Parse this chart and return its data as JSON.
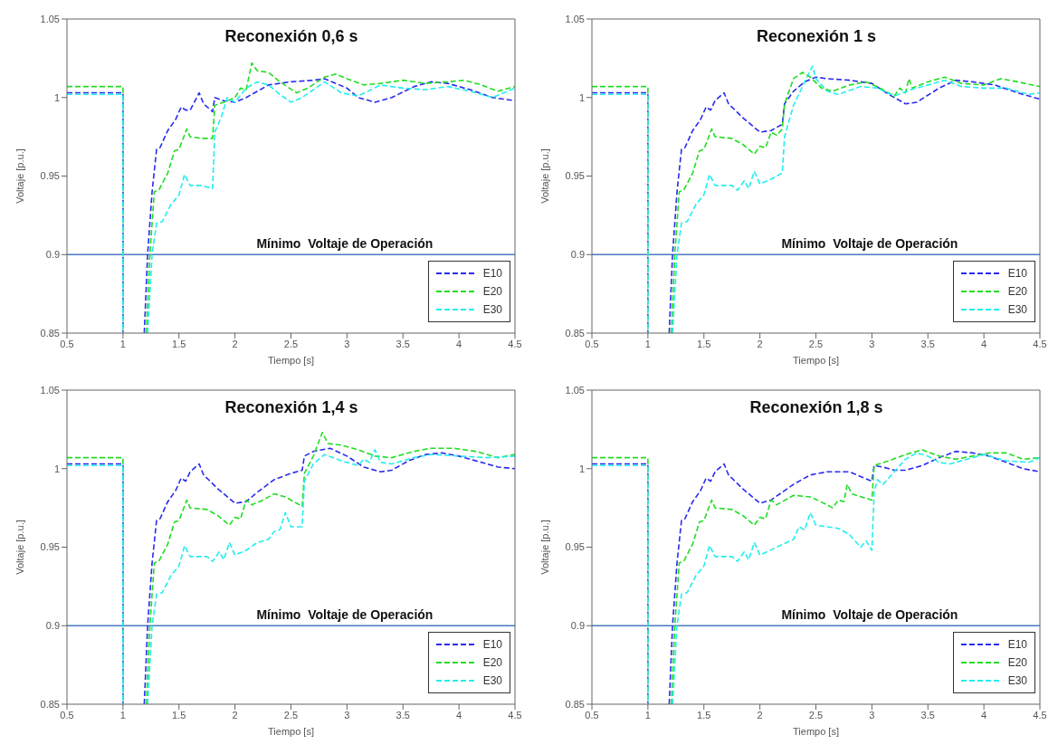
{
  "chart_data": [
    {
      "type": "line",
      "title": "Reconexión 0,6 s",
      "xlabel": "Tiempo [s]",
      "ylabel": "Voltaje [p.u.]",
      "xlim": [
        0.5,
        4.5
      ],
      "ylim": [
        0.85,
        1.05
      ],
      "xticks": [
        0.5,
        1,
        1.5,
        2,
        2.5,
        3,
        3.5,
        4,
        4.5
      ],
      "yticks": [
        0.85,
        0.9,
        0.95,
        1,
        1.05
      ],
      "grid": false,
      "legend": "bottom right",
      "line_style": "dashed",
      "ref_lines": [
        {
          "axis": "y",
          "value": 0.9,
          "label": "Mínimo  Voltaje de Operación",
          "color": "#4a78c0"
        }
      ],
      "series": [
        {
          "name": "E10",
          "color": "#2a2af0",
          "x": [
            0.5,
            1.0,
            1.0,
            1.1,
            1.19,
            1.22,
            1.26,
            1.3,
            1.33,
            1.4,
            1.47,
            1.52,
            1.56,
            1.6,
            1.68,
            1.72,
            1.8,
            1.82,
            1.9,
            2.0,
            2.1,
            2.3,
            2.5,
            2.7,
            2.8,
            3.0,
            3.1,
            3.25,
            3.4,
            3.6,
            3.75,
            3.9,
            4.1,
            4.3,
            4.5
          ],
          "values": [
            1.003,
            1.003,
            0.85,
            null,
            0.85,
            0.9,
            0.94,
            0.967,
            0.968,
            0.979,
            0.986,
            0.994,
            0.992,
            0.992,
            1.003,
            0.996,
            0.991,
            1.0,
            0.998,
            0.997,
            1.0,
            1.008,
            1.01,
            1.011,
            1.012,
            1.006,
            1.0,
            0.997,
            1.0,
            1.007,
            1.01,
            1.009,
            1.005,
            1.0,
            0.998
          ]
        },
        {
          "name": "E20",
          "color": "#22dd22",
          "x": [
            0.5,
            1.0,
            1.0,
            1.1,
            1.21,
            1.24,
            1.28,
            1.32,
            1.4,
            1.46,
            1.5,
            1.57,
            1.6,
            1.7,
            1.8,
            1.82,
            1.9,
            2.0,
            2.05,
            2.1,
            2.15,
            2.2,
            2.3,
            2.4,
            2.55,
            2.65,
            2.8,
            2.9,
            3.0,
            3.15,
            3.3,
            3.5,
            3.7,
            3.9,
            4.05,
            4.2,
            4.35,
            4.5
          ],
          "values": [
            1.007,
            1.007,
            0.85,
            null,
            0.85,
            0.9,
            0.94,
            0.941,
            0.952,
            0.966,
            0.967,
            0.98,
            0.975,
            0.974,
            0.974,
            0.995,
            0.997,
            1.0,
            1.006,
            1.005,
            1.022,
            1.017,
            1.016,
            1.01,
            1.003,
            1.006,
            1.013,
            1.015,
            1.012,
            1.008,
            1.009,
            1.011,
            1.009,
            1.01,
            1.011,
            1.008,
            1.004,
            1.007
          ]
        },
        {
          "name": "E30",
          "color": "#22eeee",
          "x": [
            0.5,
            1.0,
            1.0,
            1.1,
            1.22,
            1.26,
            1.3,
            1.35,
            1.43,
            1.5,
            1.55,
            1.6,
            1.7,
            1.8,
            1.82,
            1.88,
            1.93,
            2.0,
            2.1,
            2.2,
            2.3,
            2.4,
            2.5,
            2.6,
            2.8,
            2.95,
            3.1,
            3.3,
            3.5,
            3.7,
            3.9,
            4.1,
            4.3,
            4.5
          ],
          "values": [
            1.002,
            1.002,
            0.85,
            null,
            0.85,
            0.9,
            0.92,
            0.921,
            0.932,
            0.938,
            0.951,
            0.944,
            0.944,
            0.942,
            0.978,
            0.988,
            1.0,
            0.997,
            1.006,
            1.01,
            1.008,
            1.002,
            0.997,
            1.0,
            1.01,
            1.003,
            1.001,
            1.008,
            1.006,
            1.005,
            1.007,
            1.004,
            1.0,
            1.006
          ]
        }
      ]
    },
    {
      "type": "line",
      "title": "Reconexión 1 s",
      "xlabel": "Tiempo [s]",
      "ylabel": "Voltaje [p.u.]",
      "xlim": [
        0.5,
        4.5
      ],
      "ylim": [
        0.85,
        1.05
      ],
      "xticks": [
        0.5,
        1,
        1.5,
        2,
        2.5,
        3,
        3.5,
        4,
        4.5
      ],
      "yticks": [
        0.85,
        0.9,
        0.95,
        1,
        1.05
      ],
      "grid": false,
      "legend": "bottom right",
      "line_style": "dashed",
      "ref_lines": [
        {
          "axis": "y",
          "value": 0.9,
          "label": "Mínimo  Voltaje de Operación",
          "color": "#4a78c0"
        }
      ],
      "series": [
        {
          "name": "E10",
          "color": "#2a2af0",
          "x": [
            0.5,
            1.0,
            1.0,
            1.1,
            1.19,
            1.22,
            1.26,
            1.3,
            1.33,
            1.4,
            1.47,
            1.52,
            1.56,
            1.6,
            1.68,
            1.72,
            1.85,
            2.0,
            2.1,
            2.2,
            2.22,
            2.3,
            2.4,
            2.5,
            2.6,
            2.8,
            3.0,
            3.15,
            3.3,
            3.4,
            3.6,
            3.75,
            3.9,
            4.1,
            4.3,
            4.5
          ],
          "values": [
            1.003,
            1.003,
            0.85,
            null,
            0.85,
            0.9,
            0.94,
            0.967,
            0.968,
            0.979,
            0.986,
            0.994,
            0.992,
            0.998,
            1.003,
            0.996,
            0.987,
            0.978,
            0.979,
            0.983,
            0.996,
            1.004,
            1.01,
            1.013,
            1.012,
            1.011,
            1.009,
            1.002,
            0.996,
            0.997,
            1.006,
            1.011,
            1.01,
            1.008,
            1.003,
            0.999
          ]
        },
        {
          "name": "E20",
          "color": "#22dd22",
          "x": [
            0.5,
            1.0,
            1.0,
            1.1,
            1.21,
            1.24,
            1.28,
            1.32,
            1.4,
            1.46,
            1.5,
            1.57,
            1.6,
            1.75,
            1.85,
            1.95,
            2.0,
            2.05,
            2.1,
            2.15,
            2.2,
            2.22,
            2.3,
            2.38,
            2.45,
            2.55,
            2.65,
            2.8,
            2.95,
            3.1,
            3.2,
            3.25,
            3.3,
            3.33,
            3.36,
            3.5,
            3.65,
            3.8,
            4.0,
            4.15,
            4.3,
            4.5
          ],
          "values": [
            1.007,
            1.007,
            0.85,
            null,
            0.85,
            0.9,
            0.94,
            0.941,
            0.952,
            0.966,
            0.967,
            0.98,
            0.975,
            0.974,
            0.97,
            0.964,
            0.969,
            0.968,
            0.978,
            0.976,
            0.98,
            0.996,
            1.012,
            1.016,
            1.013,
            1.006,
            1.004,
            1.008,
            1.01,
            1.005,
            1.001,
            1.006,
            1.003,
            1.012,
            1.006,
            1.01,
            1.013,
            1.009,
            1.008,
            1.012,
            1.01,
            1.007
          ]
        },
        {
          "name": "E30",
          "color": "#22eeee",
          "x": [
            0.5,
            1.0,
            1.0,
            1.1,
            1.22,
            1.26,
            1.3,
            1.35,
            1.43,
            1.5,
            1.55,
            1.6,
            1.75,
            1.8,
            1.86,
            1.9,
            1.95,
            2.0,
            2.1,
            2.2,
            2.22,
            2.3,
            2.4,
            2.47,
            2.5,
            2.6,
            2.7,
            2.9,
            3.05,
            3.2,
            3.35,
            3.5,
            3.65,
            3.8,
            4.0,
            4.2,
            4.4,
            4.5
          ],
          "values": [
            1.002,
            1.002,
            0.85,
            null,
            0.85,
            0.9,
            0.92,
            0.921,
            0.932,
            0.938,
            0.951,
            0.944,
            0.944,
            0.941,
            0.947,
            0.942,
            0.953,
            0.945,
            0.948,
            0.952,
            0.975,
            0.995,
            1.01,
            1.02,
            1.012,
            1.004,
            1.002,
            1.007,
            1.006,
            1.001,
            1.005,
            1.008,
            1.011,
            1.007,
            1.006,
            1.006,
            1.002,
            1.003
          ]
        }
      ]
    },
    {
      "type": "line",
      "title": "Reconexión 1,4 s",
      "xlabel": "Tiempo [s]",
      "ylabel": "Voltaje [p.u.]",
      "xlim": [
        0.5,
        4.5
      ],
      "ylim": [
        0.85,
        1.05
      ],
      "xticks": [
        0.5,
        1,
        1.5,
        2,
        2.5,
        3,
        3.5,
        4,
        4.5
      ],
      "yticks": [
        0.85,
        0.9,
        0.95,
        1,
        1.05
      ],
      "grid": false,
      "legend": "bottom right",
      "line_style": "dashed",
      "ref_lines": [
        {
          "axis": "y",
          "value": 0.9,
          "label": "Mínimo  Voltaje de Operación",
          "color": "#4a78c0"
        }
      ],
      "series": [
        {
          "name": "E10",
          "color": "#2a2af0",
          "x": [
            0.5,
            1.0,
            1.0,
            1.1,
            1.19,
            1.22,
            1.26,
            1.3,
            1.33,
            1.4,
            1.47,
            1.52,
            1.56,
            1.6,
            1.68,
            1.72,
            1.85,
            2.0,
            2.1,
            2.2,
            2.35,
            2.5,
            2.6,
            2.62,
            2.7,
            2.85,
            3.0,
            3.15,
            3.3,
            3.4,
            3.55,
            3.7,
            3.85,
            4.0,
            4.2,
            4.35,
            4.5
          ],
          "values": [
            1.003,
            1.003,
            0.85,
            null,
            0.85,
            0.9,
            0.94,
            0.967,
            0.968,
            0.979,
            0.986,
            0.994,
            0.992,
            0.998,
            1.003,
            0.996,
            0.987,
            0.978,
            0.979,
            0.985,
            0.993,
            0.997,
            0.999,
            1.008,
            1.011,
            1.013,
            1.008,
            1.001,
            0.998,
            0.999,
            1.005,
            1.009,
            1.01,
            1.008,
            1.004,
            1.001,
            1.0
          ]
        },
        {
          "name": "E20",
          "color": "#22dd22",
          "x": [
            0.5,
            1.0,
            1.0,
            1.1,
            1.21,
            1.24,
            1.28,
            1.32,
            1.4,
            1.46,
            1.5,
            1.57,
            1.6,
            1.75,
            1.85,
            1.95,
            2.0,
            2.05,
            2.1,
            2.15,
            2.25,
            2.35,
            2.45,
            2.6,
            2.62,
            2.7,
            2.78,
            2.83,
            2.95,
            3.1,
            3.25,
            3.4,
            3.6,
            3.75,
            3.95,
            4.15,
            4.35,
            4.5
          ],
          "values": [
            1.007,
            1.007,
            0.85,
            null,
            0.85,
            0.9,
            0.94,
            0.941,
            0.952,
            0.966,
            0.967,
            0.98,
            0.975,
            0.974,
            0.97,
            0.964,
            0.969,
            0.968,
            0.98,
            0.977,
            0.98,
            0.984,
            0.982,
            0.976,
            0.997,
            1.008,
            1.023,
            1.016,
            1.015,
            1.012,
            1.008,
            1.007,
            1.011,
            1.013,
            1.013,
            1.011,
            1.007,
            1.009
          ]
        },
        {
          "name": "E30",
          "color": "#22eeee",
          "x": [
            0.5,
            1.0,
            1.0,
            1.1,
            1.22,
            1.26,
            1.3,
            1.35,
            1.43,
            1.5,
            1.55,
            1.6,
            1.75,
            1.8,
            1.86,
            1.9,
            1.95,
            2.0,
            2.1,
            2.2,
            2.3,
            2.35,
            2.4,
            2.45,
            2.5,
            2.6,
            2.62,
            2.7,
            2.8,
            2.95,
            3.1,
            3.15,
            3.2,
            3.25,
            3.3,
            3.4,
            3.6,
            3.75,
            4.0,
            4.25,
            4.5
          ],
          "values": [
            1.002,
            1.002,
            0.85,
            null,
            0.85,
            0.9,
            0.92,
            0.921,
            0.932,
            0.938,
            0.951,
            0.944,
            0.944,
            0.941,
            0.947,
            0.942,
            0.953,
            0.945,
            0.948,
            0.953,
            0.955,
            0.96,
            0.961,
            0.972,
            0.963,
            0.963,
            0.992,
            1.003,
            1.009,
            1.005,
            1.002,
            1.006,
            1.004,
            1.012,
            1.004,
            1.003,
            1.007,
            1.009,
            1.008,
            1.007,
            1.008
          ]
        }
      ]
    },
    {
      "type": "line",
      "title": "Reconexión 1,8 s",
      "xlabel": "Tiempo [s]",
      "ylabel": "Voltaje [p.u.]",
      "xlim": [
        0.5,
        4.5
      ],
      "ylim": [
        0.85,
        1.05
      ],
      "xticks": [
        0.5,
        1,
        1.5,
        2,
        2.5,
        3,
        3.5,
        4,
        4.5
      ],
      "yticks": [
        0.85,
        0.9,
        0.95,
        1,
        1.05
      ],
      "grid": false,
      "legend": "bottom right",
      "line_style": "dashed",
      "ref_lines": [
        {
          "axis": "y",
          "value": 0.9,
          "label": "Mínimo  Voltaje de Operación",
          "color": "#4a78c0"
        }
      ],
      "series": [
        {
          "name": "E10",
          "color": "#2a2af0",
          "x": [
            0.5,
            1.0,
            1.0,
            1.1,
            1.19,
            1.22,
            1.26,
            1.3,
            1.33,
            1.4,
            1.47,
            1.52,
            1.56,
            1.6,
            1.68,
            1.72,
            1.85,
            2.0,
            2.1,
            2.3,
            2.45,
            2.6,
            2.8,
            2.9,
            3.0,
            3.02,
            3.1,
            3.2,
            3.3,
            3.45,
            3.6,
            3.75,
            3.9,
            4.05,
            4.2,
            4.35,
            4.5
          ],
          "values": [
            1.003,
            1.003,
            0.85,
            null,
            0.85,
            0.9,
            0.94,
            0.967,
            0.968,
            0.979,
            0.986,
            0.994,
            0.992,
            0.998,
            1.003,
            0.996,
            0.987,
            0.978,
            0.98,
            0.99,
            0.996,
            0.998,
            0.998,
            0.995,
            0.992,
            1.002,
            1.001,
            0.999,
            0.999,
            1.002,
            1.007,
            1.011,
            1.01,
            1.008,
            1.004,
            1.0,
            0.998
          ]
        },
        {
          "name": "E20",
          "color": "#22dd22",
          "x": [
            0.5,
            1.0,
            1.0,
            1.1,
            1.21,
            1.24,
            1.28,
            1.32,
            1.4,
            1.46,
            1.5,
            1.57,
            1.6,
            1.75,
            1.85,
            1.95,
            2.0,
            2.05,
            2.1,
            2.15,
            2.3,
            2.45,
            2.6,
            2.65,
            2.7,
            2.75,
            2.78,
            2.82,
            2.95,
            3.0,
            3.02,
            3.15,
            3.3,
            3.45,
            3.6,
            3.75,
            3.9,
            4.05,
            4.2,
            4.35,
            4.5
          ],
          "values": [
            1.007,
            1.007,
            0.85,
            null,
            0.85,
            0.9,
            0.94,
            0.941,
            0.952,
            0.966,
            0.967,
            0.98,
            0.975,
            0.974,
            0.97,
            0.964,
            0.969,
            0.968,
            0.98,
            0.977,
            0.983,
            0.982,
            0.977,
            0.975,
            0.98,
            0.979,
            0.99,
            0.984,
            0.981,
            0.98,
            1.002,
            1.005,
            1.009,
            1.012,
            1.008,
            1.006,
            1.008,
            1.01,
            1.01,
            1.006,
            1.007
          ]
        },
        {
          "name": "E30",
          "color": "#22eeee",
          "x": [
            0.5,
            1.0,
            1.0,
            1.1,
            1.22,
            1.26,
            1.3,
            1.35,
            1.43,
            1.5,
            1.55,
            1.6,
            1.75,
            1.8,
            1.86,
            1.9,
            1.95,
            2.0,
            2.15,
            2.3,
            2.35,
            2.4,
            2.45,
            2.5,
            2.7,
            2.8,
            2.9,
            2.95,
            3.0,
            3.02,
            3.05,
            3.1,
            3.2,
            3.3,
            3.4,
            3.5,
            3.6,
            3.7,
            3.85,
            4.0,
            4.2,
            4.4,
            4.5
          ],
          "values": [
            1.002,
            1.002,
            0.85,
            null,
            0.85,
            0.9,
            0.92,
            0.921,
            0.932,
            0.938,
            0.951,
            0.944,
            0.944,
            0.941,
            0.947,
            0.942,
            0.953,
            0.945,
            0.95,
            0.955,
            0.963,
            0.961,
            0.972,
            0.964,
            0.962,
            0.958,
            0.95,
            0.954,
            0.948,
            0.985,
            0.993,
            0.99,
            0.998,
            1.006,
            1.01,
            1.008,
            1.004,
            1.003,
            1.006,
            1.009,
            1.005,
            1.004,
            1.007
          ]
        }
      ]
    }
  ]
}
